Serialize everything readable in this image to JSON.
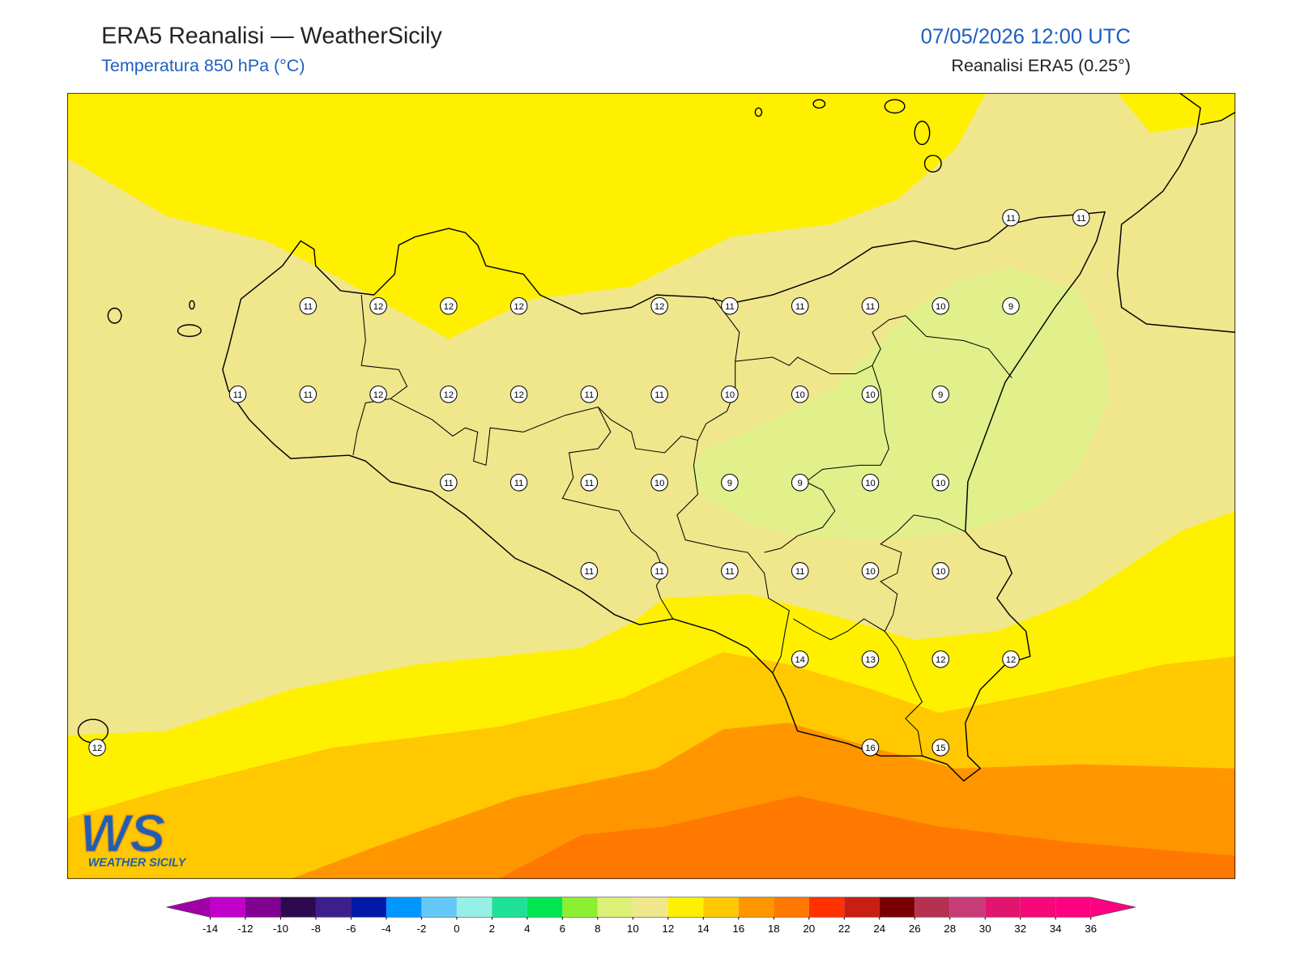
{
  "header": {
    "title": "ERA5 Reanalisi — WeatherSicily",
    "subtitle": "Temperatura 850 hPa (°C)",
    "datetime": "07/05/2026 12:00 UTC",
    "source": "Reanalisi ERA5 (0.25°)"
  },
  "temperature_grid": [
    [
      null,
      null,
      null,
      null,
      null,
      null,
      null,
      null,
      null,
      null,
      null,
      null,
      null,
      11,
      11
    ],
    [
      null,
      null,
      null,
      11,
      12,
      12,
      12,
      null,
      12,
      11,
      11,
      11,
      10,
      9,
      null
    ],
    [
      null,
      null,
      11,
      11,
      12,
      12,
      12,
      11,
      11,
      10,
      10,
      10,
      9,
      null,
      null
    ],
    [
      null,
      null,
      null,
      null,
      null,
      11,
      11,
      11,
      10,
      9,
      9,
      10,
      10,
      null,
      null
    ],
    [
      null,
      null,
      null,
      null,
      null,
      null,
      null,
      11,
      11,
      11,
      11,
      10,
      10,
      null,
      null
    ],
    [
      null,
      null,
      null,
      null,
      null,
      null,
      null,
      null,
      null,
      null,
      14,
      13,
      12,
      12,
      null
    ],
    [
      12,
      null,
      null,
      null,
      null,
      null,
      null,
      null,
      null,
      null,
      null,
      16,
      15,
      null,
      null
    ]
  ],
  "colorbar": {
    "ticks": [
      -14,
      -12,
      -10,
      -8,
      -6,
      -4,
      -2,
      0,
      2,
      4,
      6,
      8,
      10,
      12,
      14,
      16,
      18,
      20,
      22,
      24,
      26,
      28,
      30,
      32,
      34,
      36
    ],
    "colors": [
      "#c000c8",
      "#800090",
      "#2d0a4f",
      "#3c1e8c",
      "#0018a8",
      "#0096ff",
      "#64c8f8",
      "#96f0e6",
      "#1ee196",
      "#00e650",
      "#8cf032",
      "#dcf078",
      "#f0e68c",
      "#fff000",
      "#ffc800",
      "#ff9600",
      "#ff7800",
      "#ff3200",
      "#c81e14",
      "#780000",
      "#b43250",
      "#c83c78",
      "#e1146e",
      "#f5087a",
      "#ff0080"
    ],
    "extend_colors": [
      "#a000a8",
      "#ff0080"
    ]
  },
  "logo": {
    "mark": "WS",
    "name": "WEATHER SICILY"
  }
}
